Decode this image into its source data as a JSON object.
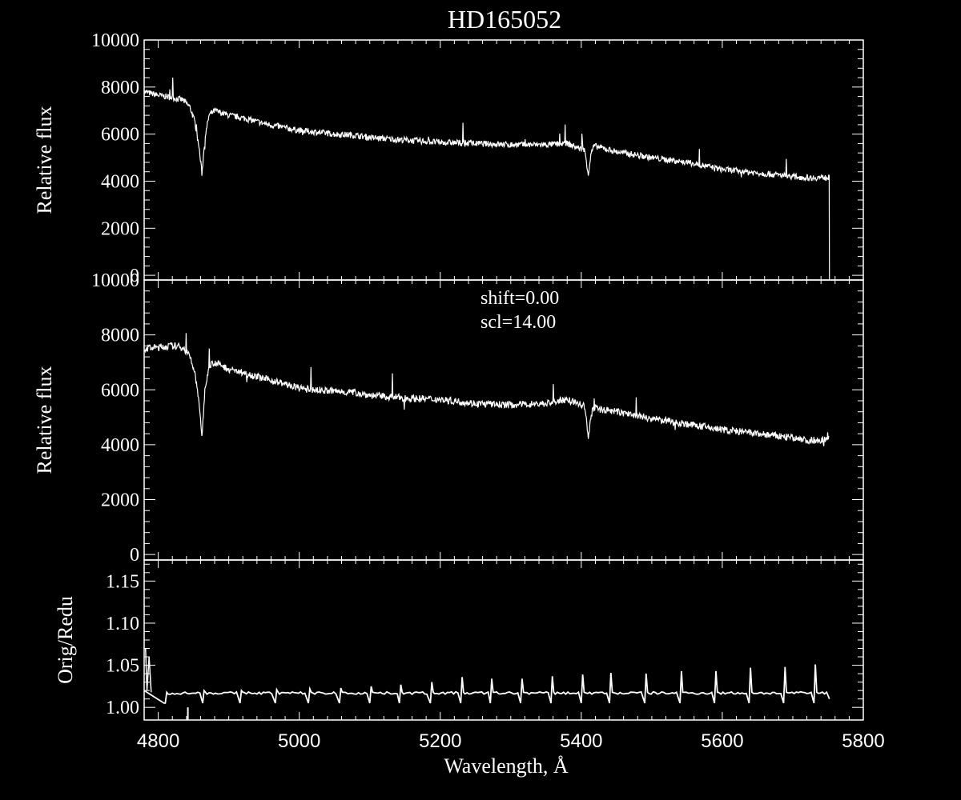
{
  "colors": {
    "background": "#000000",
    "foreground": "#ffffff"
  },
  "chart_data": [
    {
      "type": "line",
      "title": "HD165052",
      "xlabel": "",
      "ylabel": "Relative flux",
      "xlim": [
        4780,
        5800
      ],
      "ylim": [
        -200,
        10000
      ],
      "yticks": [
        0,
        2000,
        4000,
        6000,
        8000,
        10000
      ],
      "series": [
        {
          "x": [
            4780,
            4800,
            4820,
            4835,
            4845,
            4852,
            4858,
            4862,
            4866,
            4872,
            4880,
            4900,
            4925,
            4950,
            4975,
            5000,
            5020,
            5050,
            5080,
            5100,
            5150,
            5200,
            5250,
            5300,
            5350,
            5380,
            5405,
            5410,
            5414,
            5418,
            5425,
            5450,
            5500,
            5550,
            5600,
            5650,
            5700,
            5720,
            5752
          ],
          "y": [
            7800,
            7650,
            7550,
            7450,
            7150,
            6500,
            5400,
            4300,
            5800,
            6800,
            7000,
            6800,
            6650,
            6450,
            6300,
            6150,
            6100,
            6000,
            5950,
            5850,
            5750,
            5650,
            5600,
            5550,
            5550,
            5600,
            5300,
            4300,
            5200,
            5500,
            5450,
            5250,
            5000,
            4800,
            4500,
            4350,
            4200,
            4150,
            4150
          ]
        }
      ],
      "x_drop_to_zero_at": 5752
    },
    {
      "type": "line",
      "title": "",
      "xlabel": "",
      "ylabel": "Relative flux",
      "xlim": [
        4780,
        5800
      ],
      "ylim": [
        -200,
        10000
      ],
      "yticks": [
        0,
        2000,
        4000,
        6000,
        8000,
        10000
      ],
      "annotations": [
        "shift=0.00",
        "scl=14.00"
      ],
      "series": [
        {
          "x": [
            4780,
            4800,
            4820,
            4835,
            4845,
            4852,
            4858,
            4862,
            4866,
            4872,
            4880,
            4900,
            4925,
            4950,
            4975,
            5000,
            5020,
            5050,
            5080,
            5100,
            5150,
            5200,
            5250,
            5300,
            5350,
            5380,
            5405,
            5410,
            5414,
            5418,
            5425,
            5450,
            5500,
            5550,
            5600,
            5650,
            5700,
            5720,
            5752
          ],
          "y": [
            7500,
            7550,
            7600,
            7550,
            7200,
            6600,
            5500,
            4300,
            5900,
            6900,
            7000,
            6750,
            6600,
            6400,
            6250,
            6050,
            6000,
            5950,
            5900,
            5800,
            5700,
            5650,
            5500,
            5450,
            5500,
            5650,
            5400,
            4200,
            5100,
            5350,
            5300,
            5200,
            4950,
            4750,
            4550,
            4400,
            4250,
            4150,
            4200
          ]
        }
      ]
    },
    {
      "type": "line",
      "title": "",
      "xlabel": "Wavelength, Å",
      "ylabel": "Orig/Redu",
      "xlim": [
        4780,
        5800
      ],
      "ylim": [
        0.985,
        1.175
      ],
      "yticks": [
        1.0,
        1.05,
        1.1,
        1.15
      ],
      "xticks": [
        4800,
        5000,
        5200,
        5400,
        5600,
        5800
      ],
      "tick_labels_y": [
        "1.00",
        "1.05",
        "1.10",
        "1.15"
      ],
      "baseline": 1.017,
      "spike_x": [
        4808,
        4863,
        4916,
        4966,
        5013,
        5057,
        5100,
        5142,
        5186,
        5229,
        5271,
        5314,
        5357,
        5400,
        5440,
        5490,
        5540,
        5589,
        5638,
        5687,
        5730
      ],
      "spike_peak": [
        1.005,
        1.02,
        1.02,
        1.021,
        1.022,
        1.023,
        1.025,
        1.027,
        1.03,
        1.036,
        1.034,
        1.034,
        1.037,
        1.039,
        1.041,
        1.04,
        1.043,
        1.043,
        1.047,
        1.048,
        1.051
      ],
      "x_end": 5752
    }
  ]
}
